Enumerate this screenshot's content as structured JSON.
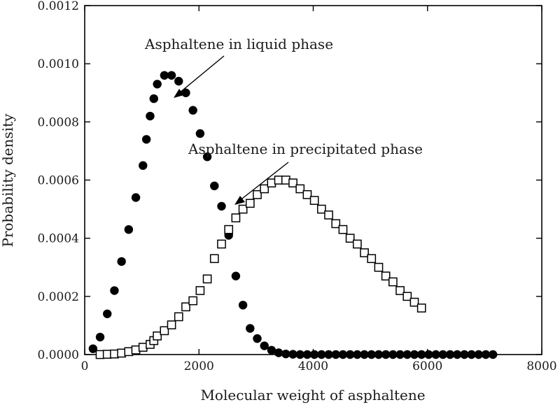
{
  "chart_data": {
    "type": "scatter",
    "xlabel": "Molecular weight of asphaltene",
    "ylabel": "Probability density",
    "xlim": [
      0,
      8000
    ],
    "ylim": [
      0,
      0.0012
    ],
    "xticks": [
      "0",
      "2000",
      "4000",
      "6000",
      "8000"
    ],
    "yticks": [
      "0.0000",
      "0.0002",
      "0.0004",
      "0.0006",
      "0.0008",
      "0.0010",
      "0.0012"
    ],
    "grid": false,
    "legend": "none",
    "series": [
      {
        "marker": "filled-circle",
        "color": "#000000",
        "x": [
          145,
          270,
          395,
          520,
          645,
          770,
          895,
          1020,
          1080,
          1145,
          1210,
          1270,
          1395,
          1520,
          1645,
          1770,
          1895,
          2020,
          2145,
          2270,
          2395,
          2520,
          2645,
          2770,
          2895,
          3020,
          3145,
          3270,
          3395,
          3520,
          3645,
          3770,
          3895,
          4020,
          4145,
          4270,
          4395,
          4520,
          4645,
          4770,
          4895,
          5020,
          5145,
          5270,
          5395,
          5520,
          5645,
          5770,
          5895,
          6020,
          6145,
          6270,
          6395,
          6520,
          6645,
          6770,
          6895,
          7020,
          7145
        ],
        "y": [
          2e-05,
          6e-05,
          0.00014,
          0.00022,
          0.00032,
          0.00043,
          0.00054,
          0.00065,
          0.00074,
          0.00082,
          0.00088,
          0.00093,
          0.00096,
          0.00096,
          0.00094,
          0.0009,
          0.00084,
          0.00076,
          0.00068,
          0.00058,
          0.00051,
          0.00041,
          0.00027,
          0.00017,
          9e-05,
          5.5e-05,
          3e-05,
          1.5e-05,
          6e-06,
          2e-06,
          1e-06,
          0,
          0,
          0,
          0,
          0,
          0,
          0,
          0,
          0,
          0,
          0,
          0,
          0,
          0,
          0,
          0,
          0,
          0,
          0,
          0,
          0,
          0,
          0,
          0,
          0,
          0,
          0,
          0
        ]
      },
      {
        "marker": "open-square",
        "color": "#000000",
        "x": [
          270,
          395,
          520,
          645,
          770,
          895,
          1020,
          1145,
          1210,
          1270,
          1395,
          1520,
          1645,
          1770,
          1895,
          2020,
          2145,
          2270,
          2395,
          2520,
          2645,
          2770,
          2895,
          3020,
          3145,
          3270,
          3395,
          3520,
          3645,
          3770,
          3895,
          4020,
          4145,
          4270,
          4395,
          4520,
          4645,
          4770,
          4895,
          5020,
          5145,
          5270,
          5395,
          5520,
          5645,
          5770,
          5895
        ],
        "y": [
          0,
          1e-06,
          2e-06,
          5e-06,
          1e-05,
          1.6e-05,
          2.5e-05,
          3.5e-05,
          4.8e-05,
          6.4e-05,
          8.2e-05,
          0.000102,
          0.00013,
          0.000164,
          0.000185,
          0.00022,
          0.00026,
          0.00033,
          0.00038,
          0.00043,
          0.00047,
          0.0005,
          0.00052,
          0.00055,
          0.00057,
          0.00059,
          0.0006,
          0.0006,
          0.00059,
          0.00057,
          0.00055,
          0.00053,
          0.0005,
          0.00048,
          0.00045,
          0.00043,
          0.0004,
          0.00038,
          0.00035,
          0.00033,
          0.0003,
          0.00027,
          0.00025,
          0.00022,
          0.0002,
          0.00018,
          0.00016
        ]
      }
    ],
    "annotations": [
      {
        "text": "Asphaltene in liquid phase"
      },
      {
        "text": "Asphaltene in precipitated phase"
      }
    ]
  }
}
